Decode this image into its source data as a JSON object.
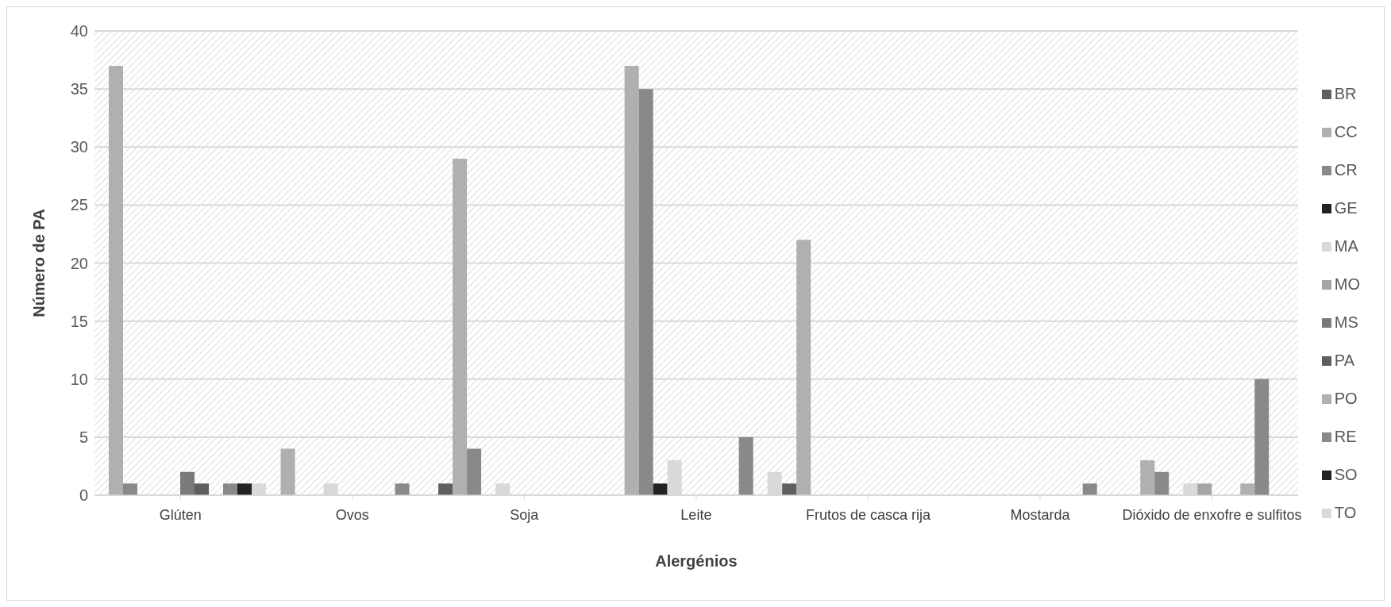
{
  "chart_data": {
    "type": "bar",
    "xlabel": "Alergénios",
    "ylabel": "Número de PA",
    "categories": [
      "Glúten",
      "Ovos",
      "Soja",
      "Leite",
      "Frutos de casca rija",
      "Mostarda",
      "Dióxido de enxofre e sulfitos"
    ],
    "series": [
      {
        "name": "BR",
        "color": "#5f5f5f",
        "values": [
          0,
          0,
          1,
          0,
          1,
          0,
          0
        ]
      },
      {
        "name": "CC",
        "color": "#b0b0b0",
        "values": [
          37,
          4,
          29,
          37,
          22,
          0,
          3
        ]
      },
      {
        "name": "CR",
        "color": "#898989",
        "values": [
          1,
          0,
          4,
          35,
          0,
          0,
          2
        ]
      },
      {
        "name": "GE",
        "color": "#222222",
        "values": [
          0,
          0,
          0,
          1,
          0,
          0,
          0
        ]
      },
      {
        "name": "MA",
        "color": "#d9d9d9",
        "values": [
          0,
          1,
          1,
          3,
          0,
          0,
          1
        ]
      },
      {
        "name": "MO",
        "color": "#a5a5a5",
        "values": [
          0,
          0,
          0,
          0,
          0,
          0,
          1
        ]
      },
      {
        "name": "MS",
        "color": "#7a7a7a",
        "values": [
          2,
          0,
          0,
          0,
          0,
          0,
          0
        ]
      },
      {
        "name": "PA",
        "color": "#5f5f5f",
        "values": [
          1,
          0,
          0,
          0,
          0,
          0,
          0
        ]
      },
      {
        "name": "PO",
        "color": "#b0b0b0",
        "values": [
          0,
          0,
          0,
          0,
          0,
          0,
          1
        ]
      },
      {
        "name": "RE",
        "color": "#898989",
        "values": [
          1,
          1,
          0,
          5,
          0,
          1,
          10
        ]
      },
      {
        "name": "SO",
        "color": "#222222",
        "values": [
          1,
          0,
          0,
          0,
          0,
          0,
          0
        ]
      },
      {
        "name": "TO",
        "color": "#d9d9d9",
        "values": [
          1,
          0,
          0,
          2,
          0,
          0,
          0
        ]
      }
    ],
    "ylim": [
      0,
      40
    ],
    "yticks": [
      0,
      5,
      10,
      15,
      20,
      25,
      30,
      35,
      40
    ],
    "grid": "y",
    "legend": "right"
  }
}
